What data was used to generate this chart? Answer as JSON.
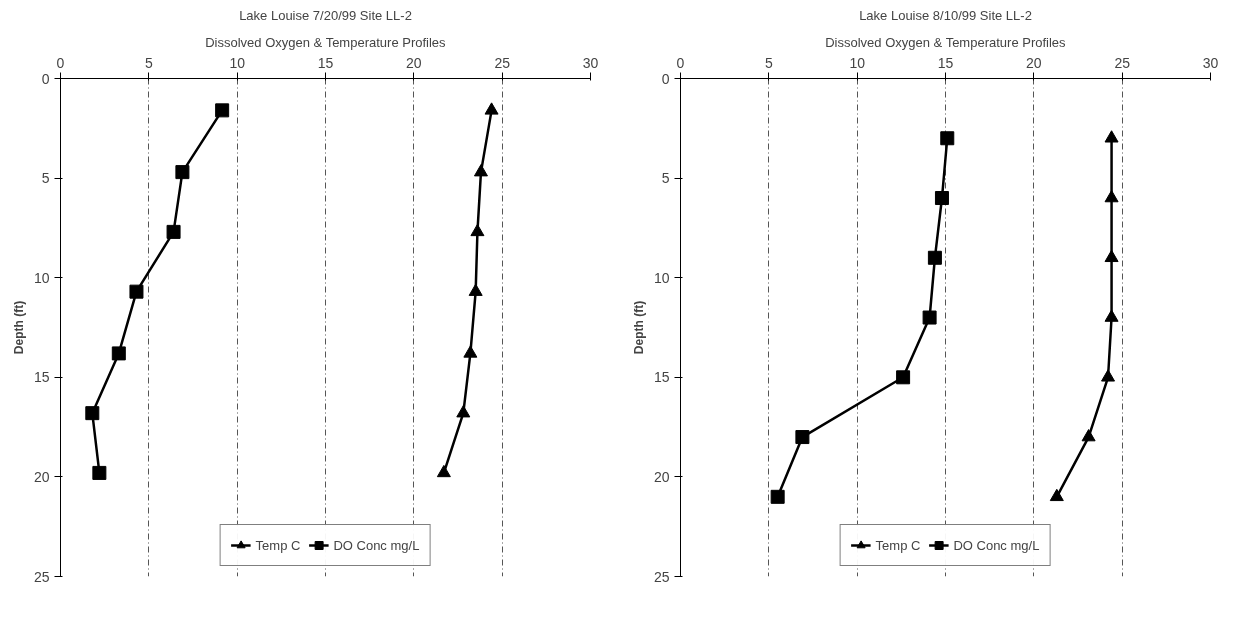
{
  "chart_data": [
    {
      "type": "line",
      "title": "Lake Louise 7/20/99 Site LL-2",
      "subtitle": "Dissolved Oxygen & Temperature Profiles",
      "ylabel": "Depth (ft)",
      "xlim": [
        0,
        30
      ],
      "xticks": [
        0,
        5,
        10,
        15,
        20,
        25,
        30
      ],
      "ylim": [
        25,
        0
      ],
      "yticks": [
        0,
        5,
        10,
        15,
        20,
        25
      ],
      "grid": "x",
      "legend": "bottom",
      "line_style": "solid",
      "series": [
        {
          "name": "Temp C",
          "color": "#000000",
          "marker": "triangle",
          "x": [
            24.4,
            23.8,
            23.6,
            23.5,
            23.2,
            22.8,
            21.7
          ],
          "values": [
            1.6,
            4.7,
            7.7,
            10.7,
            13.8,
            16.8,
            19.8
          ]
        },
        {
          "name": "DO Conc mg/L",
          "color": "#000000",
          "marker": "square",
          "x": [
            9.15,
            6.9,
            6.4,
            4.3,
            3.3,
            1.8,
            2.2
          ],
          "values": [
            1.6,
            4.7,
            7.7,
            10.7,
            13.8,
            16.8,
            19.8
          ]
        }
      ]
    },
    {
      "type": "line",
      "title": "Lake Louise 8/10/99 Site LL-2",
      "subtitle": "Dissolved Oxygen & Temperature Profiles",
      "ylabel": "Depth (ft)",
      "xlim": [
        0,
        30
      ],
      "xticks": [
        0,
        5,
        10,
        15,
        20,
        25,
        30
      ],
      "ylim": [
        25,
        0
      ],
      "yticks": [
        0,
        5,
        10,
        15,
        20,
        25
      ],
      "grid": "x",
      "legend": "bottom",
      "line_style": "solid",
      "series": [
        {
          "name": "Temp C",
          "color": "#000000",
          "marker": "triangle",
          "x": [
            24.4,
            24.4,
            24.4,
            24.4,
            24.2,
            23.1,
            21.3
          ],
          "values": [
            3,
            6,
            9,
            12,
            15,
            18,
            21
          ]
        },
        {
          "name": "DO Conc mg/L",
          "color": "#000000",
          "marker": "square",
          "x": [
            15.1,
            14.8,
            14.4,
            14.1,
            12.6,
            6.9,
            5.5
          ],
          "values": [
            3,
            6,
            9,
            12,
            15,
            18,
            21
          ]
        }
      ]
    }
  ]
}
